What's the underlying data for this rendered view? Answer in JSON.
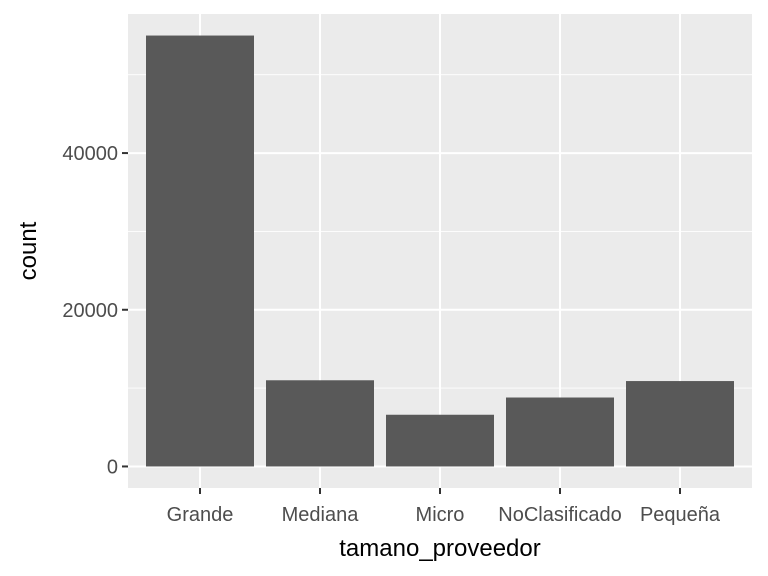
{
  "chart_data": {
    "type": "bar",
    "title": "",
    "xlabel": "tamano_proveedor",
    "ylabel": "count",
    "categories": [
      "Grande",
      "Mediana",
      "Micro",
      "NoClasificado",
      "Pequeña"
    ],
    "values": [
      55000,
      11000,
      6600,
      8800,
      10900
    ],
    "ylim": [
      -2750,
      57750
    ],
    "yticks": [
      0,
      20000,
      40000
    ],
    "ytick_labels": [
      "0",
      "20000",
      "40000"
    ],
    "grid": true,
    "legend": "none",
    "colors": {
      "panel_background": "#ebebeb",
      "grid": "#ffffff",
      "bar_fill": "#595959",
      "tick_text": "#4d4d4d",
      "tick_mark": "#333333",
      "axis_title": "#000000"
    }
  }
}
